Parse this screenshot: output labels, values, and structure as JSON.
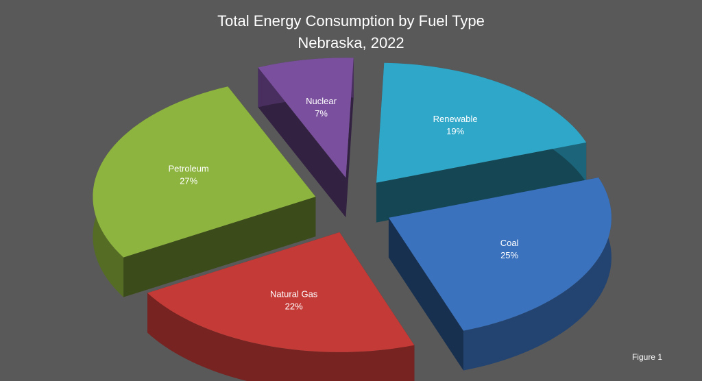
{
  "chart_data": {
    "type": "pie",
    "title": "Total Energy Consumption by Fuel Type",
    "subtitle": "Nebraska, 2022",
    "slices": [
      {
        "label": "Renewable",
        "value": 19,
        "value_label": "19%",
        "color": "#2fa7c9"
      },
      {
        "label": "Coal",
        "value": 25,
        "value_label": "25%",
        "color": "#3a72bd"
      },
      {
        "label": "Natural Gas",
        "value": 22,
        "value_label": "22%",
        "color": "#c43a37"
      },
      {
        "label": "Petroleum",
        "value": 27,
        "value_label": "27%",
        "color": "#8db43e"
      },
      {
        "label": "Nuclear",
        "value": 7,
        "value_label": "7%",
        "color": "#7a4f9e"
      }
    ],
    "exploded": true,
    "style": "3d"
  },
  "figure_label": "Figure 1"
}
